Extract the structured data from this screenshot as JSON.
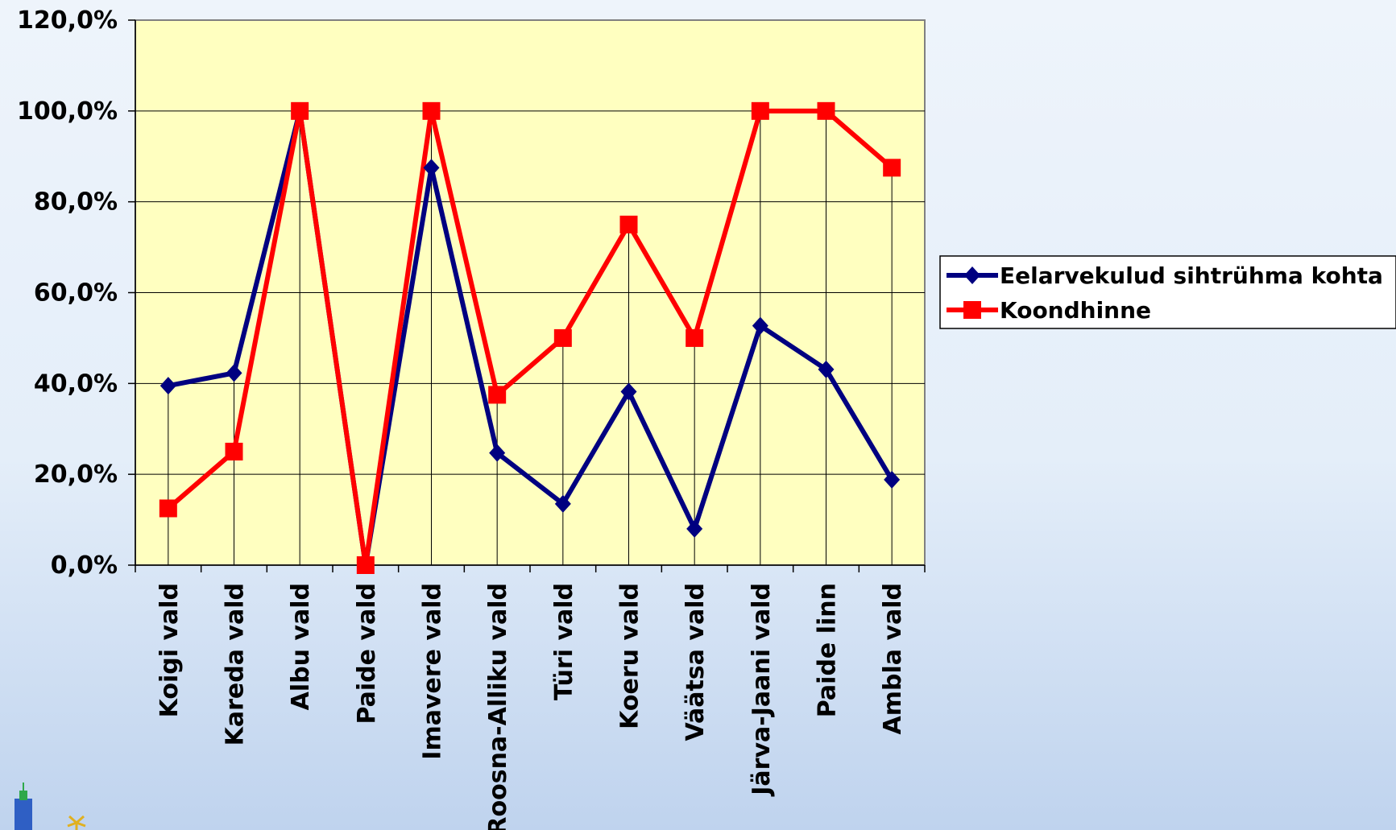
{
  "chart_data": {
    "type": "line",
    "title": "",
    "xlabel": "",
    "ylabel": "",
    "categories": [
      "Koigi vald",
      "Kareda vald",
      "Albu vald",
      "Paide vald",
      "Imavere vald",
      "Roosna-Alliku vald",
      "Türi vald",
      "Koeru vald",
      "Väätsa vald",
      "Järva-Jaani vald",
      "Paide linn",
      "Ambla vald"
    ],
    "series": [
      {
        "name": "Eelarvekulud sihtrühma kohta",
        "color": "#000080",
        "marker": "diamond",
        "values": [
          39.5,
          42.3,
          100.0,
          0.0,
          87.5,
          24.7,
          13.5,
          38.2,
          8.0,
          52.7,
          43.1,
          18.8
        ]
      },
      {
        "name": "Koondhinne",
        "color": "#FF0000",
        "marker": "square",
        "values": [
          12.5,
          25.0,
          100.0,
          0.0,
          100.0,
          37.5,
          50.0,
          75.0,
          50.0,
          100.0,
          100.0,
          87.5
        ]
      }
    ],
    "yticks": [
      "0,0%",
      "20,0%",
      "40,0%",
      "60,0%",
      "80,0%",
      "100,0%",
      "120,0%"
    ],
    "ylim": [
      0,
      120
    ],
    "grid": true,
    "drop_lines": true,
    "plot_background": "#FFFFC0",
    "legend_position": "right"
  }
}
